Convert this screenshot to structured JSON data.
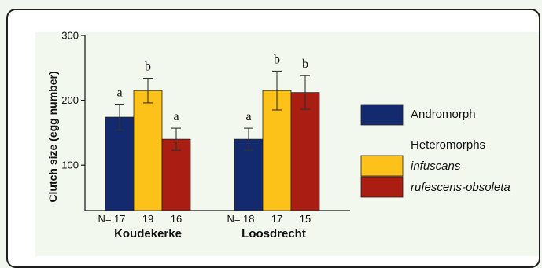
{
  "chart_data": {
    "type": "bar",
    "ylabel": "Clutch size (egg number)",
    "ylim": [
      30,
      300
    ],
    "yticks": [
      100,
      200,
      300
    ],
    "groups": [
      "Koudekerke",
      "Loosdrecht"
    ],
    "legend_header": "Heteromorphs",
    "n_prefix": "N=",
    "series": [
      {
        "name": "Andromorph",
        "italic": false,
        "color": "#142a6e",
        "values": [
          174,
          140
        ],
        "errors": [
          20,
          17
        ],
        "letters": [
          "a",
          "a"
        ],
        "n": [
          "17",
          "18"
        ]
      },
      {
        "name": "infuscans",
        "italic": true,
        "color": "#fdc21a",
        "values": [
          215,
          215
        ],
        "errors": [
          19,
          30
        ],
        "letters": [
          "b",
          "b"
        ],
        "n": [
          "19",
          "17"
        ]
      },
      {
        "name": "rufescens-obsoleta",
        "italic": true,
        "color": "#aa1d12",
        "values": [
          140,
          212
        ],
        "errors": [
          17,
          26
        ],
        "letters": [
          "a",
          "b"
        ],
        "n": [
          "16",
          "15"
        ]
      }
    ]
  }
}
